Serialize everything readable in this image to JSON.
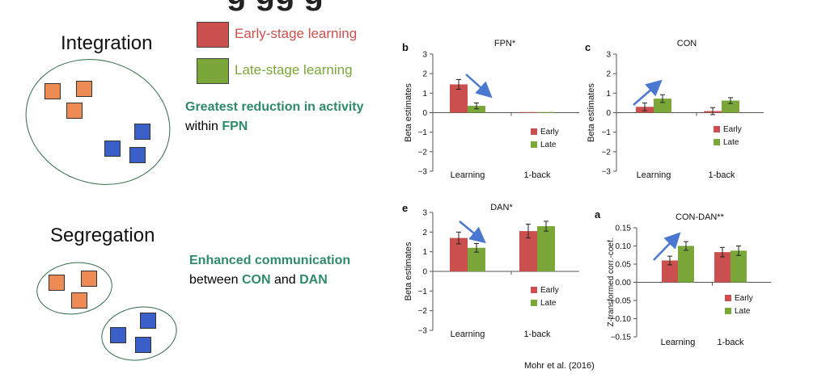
{
  "header_fragment": "g                gg  g",
  "left": {
    "integration_label": "Integration",
    "segregation_label": "Segregation"
  },
  "legend": {
    "early_label": "Early-stage learning",
    "late_label": "Late-stage learning",
    "early_color": "#c9504f",
    "late_color": "#7aa63a"
  },
  "notes": {
    "integration_line1": "Greatest reduction in activity",
    "integration_line2_prefix": "within ",
    "integration_line2_bold": "FPN",
    "segregation_line1": "Enhanced communication",
    "segregation_line2_prefix": "between ",
    "segregation_con": "CON",
    "segregation_and": " and ",
    "segregation_dan": "DAN"
  },
  "citation": "Mohr et al. (2016)",
  "colors": {
    "early": "#c9504f",
    "late": "#7aa63a",
    "arrow": "#4a78d0",
    "teal": "#2f8a6a",
    "orange_node": "#ee8b54",
    "blue_node": "#3a5fc9"
  },
  "chart_data": [
    {
      "panel": "b",
      "type": "bar",
      "title": "FPN*",
      "ylabel": "Beta estimates",
      "categories": [
        "Learning",
        "1-back"
      ],
      "ylim": [
        -3,
        3
      ],
      "yticks": [
        3,
        2,
        1,
        0,
        -1,
        -2,
        -3
      ],
      "series": [
        {
          "name": "Early",
          "values": [
            1.45,
            0.03
          ],
          "errors": [
            0.25,
            0.0
          ]
        },
        {
          "name": "Late",
          "values": [
            0.35,
            0.03
          ],
          "errors": [
            0.15,
            0.0
          ]
        }
      ],
      "legend_position": "lower-right",
      "arrow": "down"
    },
    {
      "panel": "c",
      "type": "bar",
      "title": "CON",
      "ylabel": "Beta estimates",
      "categories": [
        "Learning",
        "1-back"
      ],
      "ylim": [
        -3,
        3
      ],
      "yticks": [
        3,
        2,
        1,
        0,
        -1,
        -2,
        -3
      ],
      "series": [
        {
          "name": "Early",
          "values": [
            0.3,
            0.08
          ],
          "errors": [
            0.2,
            0.18
          ]
        },
        {
          "name": "Late",
          "values": [
            0.72,
            0.62
          ],
          "errors": [
            0.2,
            0.15
          ]
        }
      ],
      "legend_position": "lower-right",
      "arrow": "up"
    },
    {
      "panel": "e",
      "type": "bar",
      "title": "DAN*",
      "ylabel": "Beta estimates",
      "categories": [
        "Learning",
        "1-back"
      ],
      "ylim": [
        -3,
        3
      ],
      "yticks": [
        3,
        2,
        1,
        0,
        -1,
        -2,
        -3
      ],
      "series": [
        {
          "name": "Early",
          "values": [
            1.7,
            2.05
          ],
          "errors": [
            0.3,
            0.35
          ]
        },
        {
          "name": "Late",
          "values": [
            1.2,
            2.3
          ],
          "errors": [
            0.22,
            0.25
          ]
        }
      ],
      "legend_position": "lower-right",
      "arrow": "down"
    },
    {
      "panel": "a",
      "type": "bar",
      "title": "CON-DAN**",
      "ylabel": "Z-transformed corr.-coef.",
      "categories": [
        "Learning",
        "1-back"
      ],
      "ylim": [
        -0.15,
        0.15
      ],
      "yticks": [
        "0.15",
        "0.10",
        "0.05",
        "0.00",
        "−0.05",
        "−0.10",
        "−0.15"
      ],
      "ytick_values": [
        0.15,
        0.1,
        0.05,
        0,
        -0.05,
        -0.1,
        -0.15
      ],
      "series": [
        {
          "name": "Early",
          "values": [
            0.06,
            0.083
          ],
          "errors": [
            0.012,
            0.013
          ]
        },
        {
          "name": "Late",
          "values": [
            0.1,
            0.087
          ],
          "errors": [
            0.012,
            0.013
          ]
        }
      ],
      "legend_position": "lower-right",
      "arrow": "up"
    }
  ]
}
